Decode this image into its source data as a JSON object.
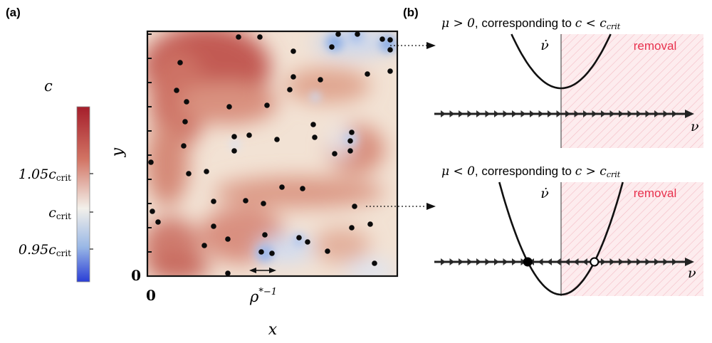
{
  "panel_a": {
    "label": "(a)",
    "colorbar": {
      "title": "c",
      "ticks": [
        {
          "main": "1.05c",
          "sub": "crit",
          "value": 1.05
        },
        {
          "main": "c",
          "sub": "crit",
          "value": 1.0
        },
        {
          "main": "0.95c",
          "sub": "crit",
          "value": 0.95
        }
      ],
      "colors": {
        "high": "#a51e2b",
        "mid": "#f3f0ea",
        "low": "#2a3ed6"
      }
    },
    "axes": {
      "xlabel": "x",
      "ylabel": "y",
      "x_origin": "0",
      "y_origin": "0",
      "scale_bar_label": "ρ",
      "scale_bar_exponent": "*−1"
    }
  },
  "panel_b": {
    "label": "(b)",
    "top": {
      "caption_lhs": "μ > 0",
      "caption_text": ", corresponding to ",
      "caption_rhs": "c < c",
      "caption_sub": "crit",
      "ylabel": "ν̇",
      "xlabel": "ν",
      "region_label": "removal",
      "vertex_offset": 0.3
    },
    "bottom": {
      "caption_lhs": "μ < 0",
      "caption_text": ", corresponding to ",
      "caption_rhs": "c > c",
      "caption_sub": "crit",
      "ylabel": "ν̇",
      "xlabel": "ν",
      "region_label": "removal",
      "vertex_offset": -0.5,
      "fixed_points": [
        {
          "type": "stable",
          "nu": -0.707
        },
        {
          "type": "unstable",
          "nu": 0.707
        }
      ]
    },
    "colors": {
      "removal_text": "#e8324e",
      "removal_fill": "#fde9ec"
    }
  }
}
